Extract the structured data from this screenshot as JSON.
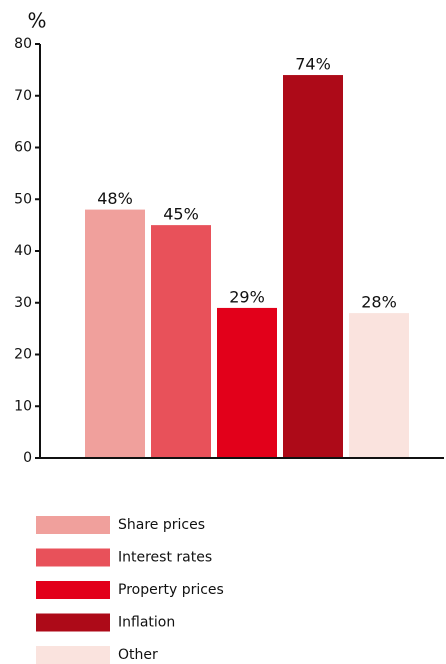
{
  "chart_data": {
    "type": "bar",
    "y_label": "%",
    "categories": [
      "Share prices",
      "Interest rates",
      "Property prices",
      "Inflation",
      "Other"
    ],
    "values": [
      48,
      45,
      29,
      74,
      28
    ],
    "value_labels": [
      "48%",
      "45%",
      "29%",
      "74%",
      "28%"
    ],
    "colors": [
      "#f0a09c",
      "#e8515a",
      "#e2001a",
      "#ad0a18",
      "#fae3de"
    ],
    "ylim": [
      0,
      80
    ],
    "yticks": [
      0,
      10,
      20,
      30,
      40,
      50,
      60,
      70,
      80
    ],
    "grid": false
  }
}
